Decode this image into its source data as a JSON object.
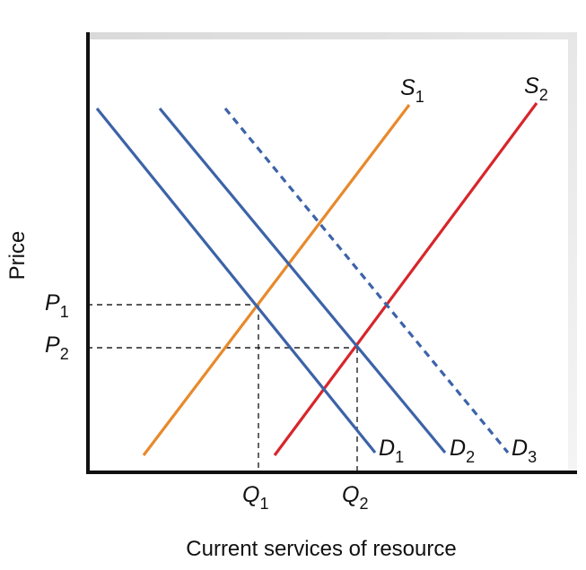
{
  "axes": {
    "y_label": "Price",
    "x_label": "Current services of resource"
  },
  "curves": [
    {
      "letter": "S",
      "subscript": "1"
    },
    {
      "letter": "S",
      "subscript": "2"
    },
    {
      "letter": "D",
      "subscript": "1"
    },
    {
      "letter": "D",
      "subscript": "2"
    },
    {
      "letter": "D",
      "subscript": "3"
    }
  ],
  "price_levels": [
    {
      "letter": "P",
      "subscript": "1"
    },
    {
      "letter": "P",
      "subscript": "2"
    }
  ],
  "quantity_levels": [
    {
      "letter": "Q",
      "subscript": "1"
    },
    {
      "letter": "Q",
      "subscript": "2"
    }
  ]
}
